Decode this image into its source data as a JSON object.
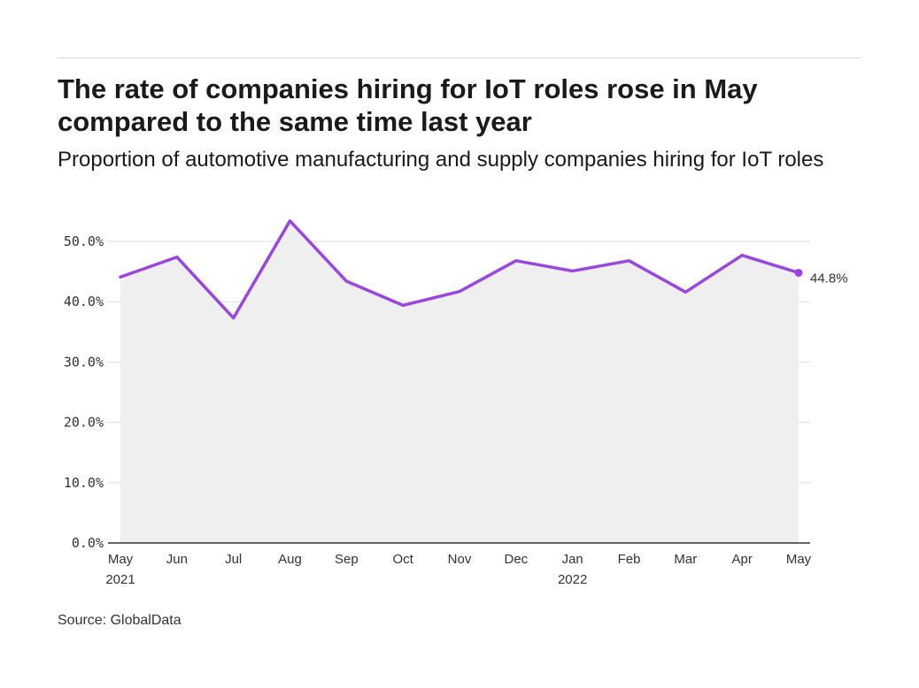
{
  "title": "The rate of companies hiring for IoT roles rose in May compared to the same time last year",
  "subtitle": "Proportion of automotive manufacturing and supply companies hiring for IoT roles",
  "source": "Source: GlobalData",
  "colors": {
    "line": "#9b45e0",
    "area": "#efefef",
    "grid": "#dddddd",
    "axis": "#333333"
  },
  "chart_data": {
    "type": "area",
    "title": "The rate of companies hiring for IoT roles rose in May compared to the same time last year",
    "subtitle": "Proportion of automotive manufacturing and supply companies hiring for IoT roles",
    "x_ticks": [
      {
        "label": "May",
        "year": "2021"
      },
      {
        "label": "Jun",
        "year": ""
      },
      {
        "label": "Jul",
        "year": ""
      },
      {
        "label": "Aug",
        "year": ""
      },
      {
        "label": "Sep",
        "year": ""
      },
      {
        "label": "Oct",
        "year": ""
      },
      {
        "label": "Nov",
        "year": ""
      },
      {
        "label": "Dec",
        "year": ""
      },
      {
        "label": "Jan",
        "year": "2022"
      },
      {
        "label": "Feb",
        "year": ""
      },
      {
        "label": "Mar",
        "year": ""
      },
      {
        "label": "Apr",
        "year": ""
      },
      {
        "label": "May",
        "year": ""
      }
    ],
    "values": [
      44.1,
      47.4,
      37.3,
      53.4,
      43.4,
      39.4,
      41.7,
      46.8,
      45.1,
      46.8,
      41.6,
      47.7,
      44.8
    ],
    "y_ticks": [
      "0.0%",
      "10.0%",
      "20.0%",
      "30.0%",
      "40.0%",
      "50.0%"
    ],
    "ylim": [
      0,
      50
    ],
    "end_label": "44.8%",
    "grid": true
  }
}
